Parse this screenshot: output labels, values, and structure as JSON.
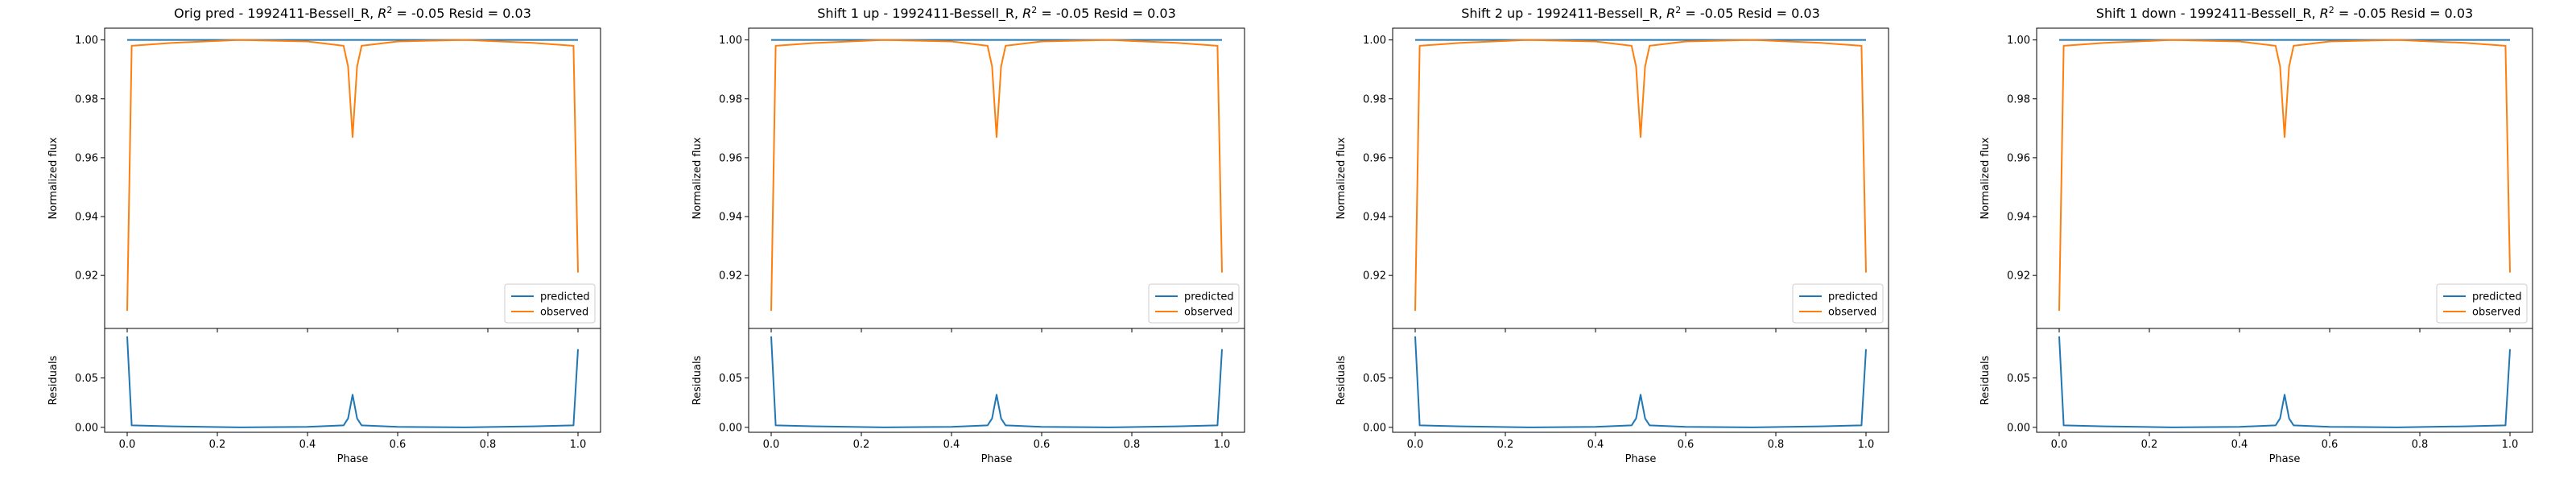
{
  "colors": {
    "predicted": "#1f77b4",
    "observed": "#ff7f0e",
    "axes": "#000000",
    "legend_border": "#cccccc"
  },
  "chart_data": [
    {
      "type": "line",
      "title_prefix": "Orig pred - 1992411-Bessell_R, ",
      "title_r2": "R",
      "title_sup": "2",
      "title_suffix": " = -0.05 Resid = 0.03",
      "ylabel": "Normalized flux",
      "resid_ylabel": "Residuals",
      "xlabel": "Phase",
      "legend": [
        "predicted",
        "observed"
      ],
      "legend_position": "lower right",
      "xlim": [
        -0.05,
        1.05
      ],
      "ylim": [
        0.902,
        1.004
      ],
      "resid_ylim": [
        -0.005,
        0.1
      ],
      "x_ticks": [
        "0.0",
        "0.2",
        "0.4",
        "0.6",
        "0.8",
        "1.0"
      ],
      "y_ticks": [
        "0.92",
        "0.94",
        "0.96",
        "0.98",
        "1.00"
      ],
      "resid_ticks": [
        "0.00",
        "0.05"
      ],
      "series": [
        {
          "name": "predicted",
          "x": [
            0.0,
            0.25,
            0.5,
            0.75,
            1.0
          ],
          "y": [
            1.0,
            1.0,
            1.0,
            1.0,
            1.0
          ]
        },
        {
          "name": "observed",
          "x": [
            0.0,
            0.01,
            0.1,
            0.25,
            0.4,
            0.48,
            0.49,
            0.5,
            0.51,
            0.52,
            0.6,
            0.75,
            0.9,
            0.99,
            1.0
          ],
          "y": [
            0.908,
            0.998,
            0.999,
            1.0,
            0.9995,
            0.998,
            0.991,
            0.967,
            0.991,
            0.998,
            0.9995,
            1.0,
            0.999,
            0.998,
            0.921
          ]
        },
        {
          "name": "residuals",
          "x": [
            0.0,
            0.01,
            0.1,
            0.25,
            0.4,
            0.48,
            0.49,
            0.5,
            0.51,
            0.52,
            0.6,
            0.75,
            0.9,
            0.99,
            1.0
          ],
          "y": [
            0.092,
            0.002,
            0.001,
            0.0,
            0.0005,
            0.002,
            0.009,
            0.033,
            0.009,
            0.002,
            0.0005,
            0.0,
            0.001,
            0.002,
            0.079
          ]
        }
      ]
    },
    {
      "type": "line",
      "title_prefix": "Shift 1 up - 1992411-Bessell_R, ",
      "title_r2": "R",
      "title_sup": "2",
      "title_suffix": " = -0.05 Resid = 0.03",
      "ylabel": "Normalized flux",
      "resid_ylabel": "Residuals",
      "xlabel": "Phase",
      "legend": [
        "predicted",
        "observed"
      ],
      "legend_position": "lower right",
      "xlim": [
        -0.05,
        1.05
      ],
      "ylim": [
        0.902,
        1.004
      ],
      "resid_ylim": [
        -0.005,
        0.1
      ],
      "x_ticks": [
        "0.0",
        "0.2",
        "0.4",
        "0.6",
        "0.8",
        "1.0"
      ],
      "y_ticks": [
        "0.92",
        "0.94",
        "0.96",
        "0.98",
        "1.00"
      ],
      "resid_ticks": [
        "0.00",
        "0.05"
      ],
      "series": [
        {
          "name": "predicted",
          "x": [
            0.0,
            0.25,
            0.5,
            0.75,
            1.0
          ],
          "y": [
            1.0,
            1.0,
            1.0,
            1.0,
            1.0
          ]
        },
        {
          "name": "observed",
          "x": [
            0.0,
            0.01,
            0.1,
            0.25,
            0.4,
            0.48,
            0.49,
            0.5,
            0.51,
            0.52,
            0.6,
            0.75,
            0.9,
            0.99,
            1.0
          ],
          "y": [
            0.908,
            0.998,
            0.999,
            1.0,
            0.9995,
            0.998,
            0.991,
            0.967,
            0.991,
            0.998,
            0.9995,
            1.0,
            0.999,
            0.998,
            0.921
          ]
        },
        {
          "name": "residuals",
          "x": [
            0.0,
            0.01,
            0.1,
            0.25,
            0.4,
            0.48,
            0.49,
            0.5,
            0.51,
            0.52,
            0.6,
            0.75,
            0.9,
            0.99,
            1.0
          ],
          "y": [
            0.092,
            0.002,
            0.001,
            0.0,
            0.0005,
            0.002,
            0.009,
            0.033,
            0.009,
            0.002,
            0.0005,
            0.0,
            0.001,
            0.002,
            0.079
          ]
        }
      ]
    },
    {
      "type": "line",
      "title_prefix": "Shift 2 up - 1992411-Bessell_R, ",
      "title_r2": "R",
      "title_sup": "2",
      "title_suffix": " = -0.05 Resid = 0.03",
      "ylabel": "Normalized flux",
      "resid_ylabel": "Residuals",
      "xlabel": "Phase",
      "legend": [
        "predicted",
        "observed"
      ],
      "legend_position": "lower right",
      "xlim": [
        -0.05,
        1.05
      ],
      "ylim": [
        0.902,
        1.004
      ],
      "resid_ylim": [
        -0.005,
        0.1
      ],
      "x_ticks": [
        "0.0",
        "0.2",
        "0.4",
        "0.6",
        "0.8",
        "1.0"
      ],
      "y_ticks": [
        "0.92",
        "0.94",
        "0.96",
        "0.98",
        "1.00"
      ],
      "resid_ticks": [
        "0.00",
        "0.05"
      ],
      "series": [
        {
          "name": "predicted",
          "x": [
            0.0,
            0.25,
            0.5,
            0.75,
            1.0
          ],
          "y": [
            1.0,
            1.0,
            1.0,
            1.0,
            1.0
          ]
        },
        {
          "name": "observed",
          "x": [
            0.0,
            0.01,
            0.1,
            0.25,
            0.4,
            0.48,
            0.49,
            0.5,
            0.51,
            0.52,
            0.6,
            0.75,
            0.9,
            0.99,
            1.0
          ],
          "y": [
            0.908,
            0.998,
            0.999,
            1.0,
            0.9995,
            0.998,
            0.991,
            0.967,
            0.991,
            0.998,
            0.9995,
            1.0,
            0.999,
            0.998,
            0.921
          ]
        },
        {
          "name": "residuals",
          "x": [
            0.0,
            0.01,
            0.1,
            0.25,
            0.4,
            0.48,
            0.49,
            0.5,
            0.51,
            0.52,
            0.6,
            0.75,
            0.9,
            0.99,
            1.0
          ],
          "y": [
            0.092,
            0.002,
            0.001,
            0.0,
            0.0005,
            0.002,
            0.009,
            0.033,
            0.009,
            0.002,
            0.0005,
            0.0,
            0.001,
            0.002,
            0.079
          ]
        }
      ]
    },
    {
      "type": "line",
      "title_prefix": "Shift 1 down - 1992411-Bessell_R, ",
      "title_r2": "R",
      "title_sup": "2",
      "title_suffix": " = -0.05 Resid = 0.03",
      "ylabel": "Normalized flux",
      "resid_ylabel": "Residuals",
      "xlabel": "Phase",
      "legend": [
        "predicted",
        "observed"
      ],
      "legend_position": "lower right",
      "xlim": [
        -0.05,
        1.05
      ],
      "ylim": [
        0.902,
        1.004
      ],
      "resid_ylim": [
        -0.005,
        0.1
      ],
      "x_ticks": [
        "0.0",
        "0.2",
        "0.4",
        "0.6",
        "0.8",
        "1.0"
      ],
      "y_ticks": [
        "0.92",
        "0.94",
        "0.96",
        "0.98",
        "1.00"
      ],
      "resid_ticks": [
        "0.00",
        "0.05"
      ],
      "series": [
        {
          "name": "predicted",
          "x": [
            0.0,
            0.25,
            0.5,
            0.75,
            1.0
          ],
          "y": [
            1.0,
            1.0,
            1.0,
            1.0,
            1.0
          ]
        },
        {
          "name": "observed",
          "x": [
            0.0,
            0.01,
            0.1,
            0.25,
            0.4,
            0.48,
            0.49,
            0.5,
            0.51,
            0.52,
            0.6,
            0.75,
            0.9,
            0.99,
            1.0
          ],
          "y": [
            0.908,
            0.998,
            0.999,
            1.0,
            0.9995,
            0.998,
            0.991,
            0.967,
            0.991,
            0.998,
            0.9995,
            1.0,
            0.999,
            0.998,
            0.921
          ]
        },
        {
          "name": "residuals",
          "x": [
            0.0,
            0.01,
            0.1,
            0.25,
            0.4,
            0.48,
            0.49,
            0.5,
            0.51,
            0.52,
            0.6,
            0.75,
            0.9,
            0.99,
            1.0
          ],
          "y": [
            0.092,
            0.002,
            0.001,
            0.0,
            0.0005,
            0.002,
            0.009,
            0.033,
            0.009,
            0.002,
            0.0005,
            0.0,
            0.001,
            0.002,
            0.079
          ]
        }
      ]
    }
  ]
}
